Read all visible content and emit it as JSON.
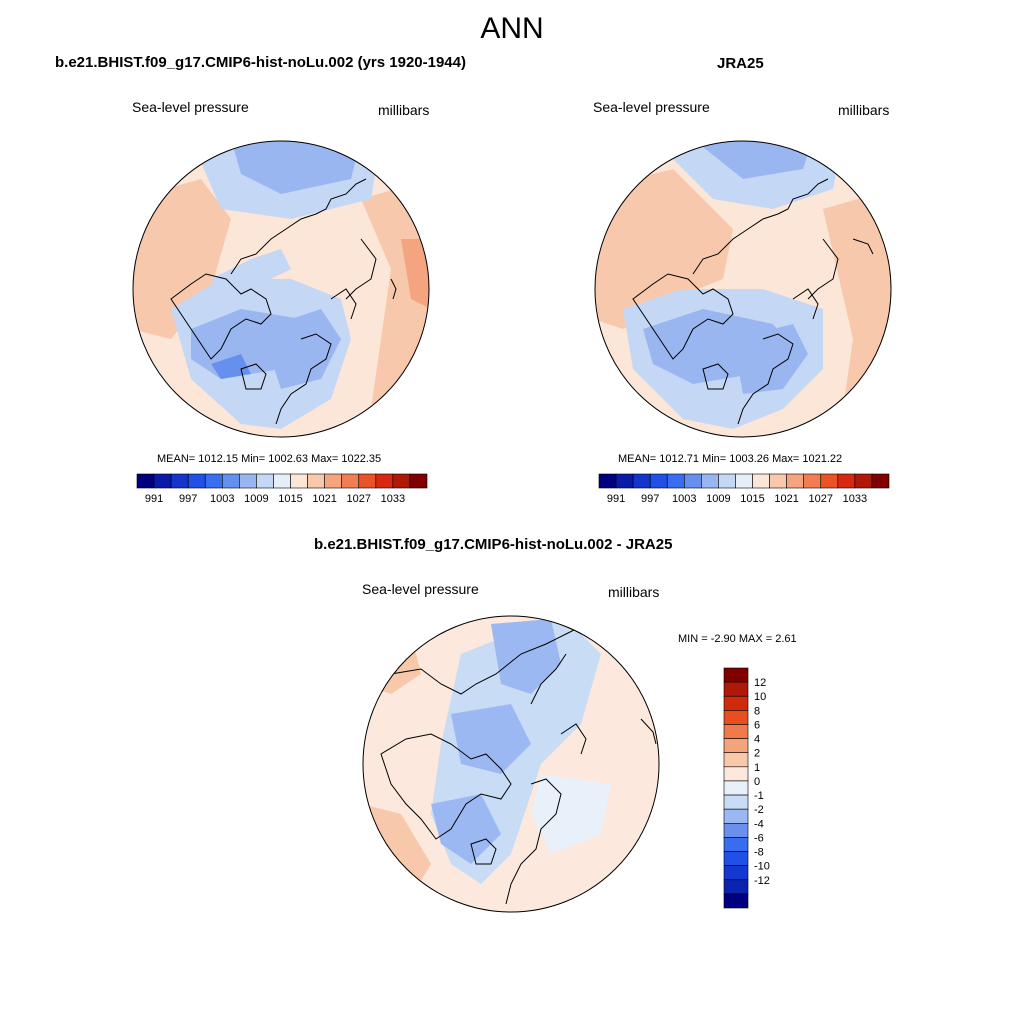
{
  "page_title": "ANN",
  "panels": [
    {
      "title": "b.e21.BHIST.f09_g17.CMIP6-hist-noLu.002 (yrs 1920-1944)",
      "variable": "Sea-level pressure",
      "units": "millibars",
      "stats": "MEAN= 1012.15   Min= 1002.63   Max= 1022.35"
    },
    {
      "title": "JRA25",
      "variable": "Sea-level pressure",
      "units": "millibars",
      "stats": "MEAN= 1012.71   Min= 1003.26   Max= 1021.22"
    },
    {
      "title": "b.e21.BHIST.f09_g17.CMIP6-hist-noLu.002 - JRA25",
      "variable": "Sea-level pressure",
      "units": "millibars",
      "stats": "MIN =  -2.90 MAX =   2.61"
    }
  ],
  "abs_colorbar": {
    "colors": [
      "#00007f",
      "#0a1aaa",
      "#1434cc",
      "#2050e6",
      "#3a6ef0",
      "#6690ee",
      "#99b6f0",
      "#c4d8f6",
      "#e6eefa",
      "#fbe6d8",
      "#f8c8ac",
      "#f4a47e",
      "#f07e52",
      "#ea5228",
      "#d82810",
      "#b01808",
      "#800000"
    ],
    "tick_labels": [
      "991",
      "997",
      "1003",
      "1009",
      "1015",
      "1021",
      "1027",
      "1033"
    ]
  },
  "diff_colorbar": {
    "colors": [
      "#000080",
      "#0a24b0",
      "#1438d0",
      "#2050e8",
      "#3a6cf0",
      "#6a90ee",
      "#9cb8f2",
      "#c8dcf6",
      "#e8f0fa",
      "#fce8dc",
      "#f8c8aa",
      "#f4a47c",
      "#f07a4a",
      "#e84e20",
      "#d02a0c",
      "#b01808",
      "#800000"
    ],
    "tick_labels": [
      "-12",
      "-10",
      "-8",
      "-6",
      "-4",
      "-2",
      "-1",
      "0",
      "1",
      "2",
      "4",
      "6",
      "8",
      "10",
      "12"
    ]
  }
}
